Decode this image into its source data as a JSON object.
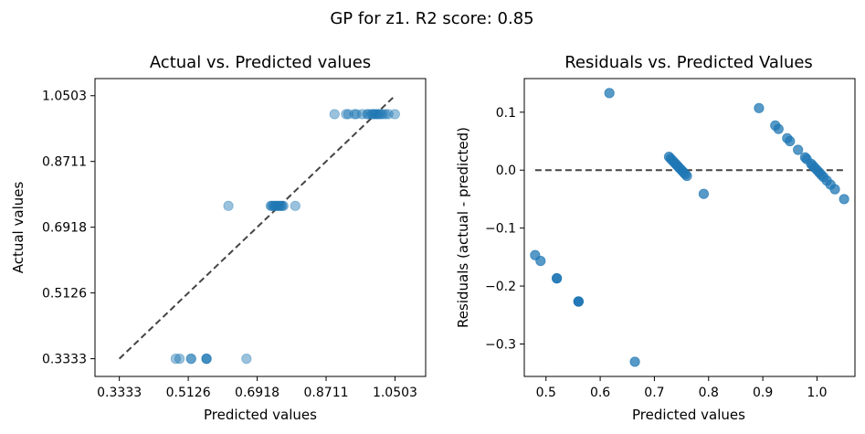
{
  "figure": {
    "suptitle": "GP for z1. R2 score: 0.85"
  },
  "chart_data": [
    {
      "type": "scatter",
      "title": "Actual vs. Predicted values",
      "xlabel": "Predicted values",
      "ylabel": "Actual values",
      "xlim": [
        0.27,
        1.13
      ],
      "ylim": [
        0.285,
        1.097
      ],
      "xticks": [
        0.3333,
        0.5126,
        0.6918,
        0.8711,
        1.0503
      ],
      "xtick_labels": [
        "0.3333",
        "0.5126",
        "0.6918",
        "0.8711",
        "1.0503"
      ],
      "yticks": [
        0.3333,
        0.5126,
        0.6918,
        0.8711,
        1.0503
      ],
      "ytick_labels": [
        "0.3333",
        "0.5126",
        "0.6918",
        "0.8711",
        "1.0503"
      ],
      "reference_line": {
        "from": [
          0.3333,
          0.3333
        ],
        "to": [
          1.0503,
          1.0503
        ],
        "style": "dashed",
        "color": "#444444"
      },
      "marker_color": "#1f77b4",
      "marker_alpha": 0.45,
      "points": [
        [
          0.48,
          0.3333
        ],
        [
          0.49,
          0.3333
        ],
        [
          0.52,
          0.3333
        ],
        [
          0.52,
          0.3333
        ],
        [
          0.56,
          0.3333
        ],
        [
          0.56,
          0.3333
        ],
        [
          0.56,
          0.3333
        ],
        [
          0.664,
          0.3333
        ],
        [
          0.617,
          0.75
        ],
        [
          0.727,
          0.75
        ],
        [
          0.73,
          0.75
        ],
        [
          0.733,
          0.75
        ],
        [
          0.736,
          0.75
        ],
        [
          0.739,
          0.75
        ],
        [
          0.742,
          0.75
        ],
        [
          0.745,
          0.75
        ],
        [
          0.748,
          0.75
        ],
        [
          0.751,
          0.75
        ],
        [
          0.754,
          0.75
        ],
        [
          0.757,
          0.75
        ],
        [
          0.76,
          0.75
        ],
        [
          0.791,
          0.75
        ],
        [
          0.893,
          1.0
        ],
        [
          0.923,
          1.0
        ],
        [
          0.929,
          1.0
        ],
        [
          0.945,
          1.0
        ],
        [
          0.95,
          1.0
        ],
        [
          0.965,
          1.0
        ],
        [
          0.978,
          1.0
        ],
        [
          0.981,
          1.0
        ],
        [
          0.989,
          1.0
        ],
        [
          0.992,
          1.0
        ],
        [
          0.996,
          1.0
        ],
        [
          1.0,
          1.0
        ],
        [
          1.004,
          1.0
        ],
        [
          1.008,
          1.0
        ],
        [
          1.012,
          1.0
        ],
        [
          1.018,
          1.0
        ],
        [
          1.025,
          1.0
        ],
        [
          1.033,
          1.0
        ],
        [
          1.05,
          1.0
        ]
      ]
    },
    {
      "type": "scatter",
      "title": "Residuals vs. Predicted Values",
      "xlabel": "Predicted values",
      "ylabel": "Residuals (actual - predicted)",
      "xlim": [
        0.46,
        1.07
      ],
      "ylim": [
        -0.356,
        0.158
      ],
      "xticks": [
        0.5,
        0.6,
        0.7,
        0.8,
        0.9,
        1.0
      ],
      "xtick_labels": [
        "0.5",
        "0.6",
        "0.7",
        "0.8",
        "0.9",
        "1.0"
      ],
      "yticks": [
        0.1,
        0.0,
        -0.1,
        -0.2,
        -0.3
      ],
      "ytick_labels": [
        "0.1",
        "0.0",
        "−0.1",
        "−0.2",
        "−0.3"
      ],
      "reference_line": {
        "from": [
          0.48,
          0.0
        ],
        "to": [
          1.05,
          0.0
        ],
        "style": "dashed",
        "color": "#444444"
      },
      "marker_color": "#1f77b4",
      "marker_alpha": 0.75,
      "points": [
        [
          0.48,
          -0.1467
        ],
        [
          0.49,
          -0.1567
        ],
        [
          0.52,
          -0.1867
        ],
        [
          0.52,
          -0.1867
        ],
        [
          0.56,
          -0.2267
        ],
        [
          0.56,
          -0.2267
        ],
        [
          0.56,
          -0.2267
        ],
        [
          0.664,
          -0.3307
        ],
        [
          0.617,
          0.133
        ],
        [
          0.727,
          0.023
        ],
        [
          0.73,
          0.02
        ],
        [
          0.733,
          0.017
        ],
        [
          0.736,
          0.014
        ],
        [
          0.739,
          0.011
        ],
        [
          0.742,
          0.008
        ],
        [
          0.745,
          0.005
        ],
        [
          0.748,
          0.002
        ],
        [
          0.751,
          -0.001
        ],
        [
          0.754,
          -0.004
        ],
        [
          0.757,
          -0.007
        ],
        [
          0.76,
          -0.01
        ],
        [
          0.791,
          -0.041
        ],
        [
          0.893,
          0.107
        ],
        [
          0.923,
          0.077
        ],
        [
          0.929,
          0.071
        ],
        [
          0.945,
          0.055
        ],
        [
          0.95,
          0.05
        ],
        [
          0.965,
          0.035
        ],
        [
          0.978,
          0.022
        ],
        [
          0.981,
          0.019
        ],
        [
          0.989,
          0.011
        ],
        [
          0.992,
          0.008
        ],
        [
          0.996,
          0.004
        ],
        [
          1.0,
          0.0
        ],
        [
          1.004,
          -0.004
        ],
        [
          1.008,
          -0.008
        ],
        [
          1.012,
          -0.012
        ],
        [
          1.018,
          -0.018
        ],
        [
          1.025,
          -0.025
        ],
        [
          1.033,
          -0.033
        ],
        [
          1.05,
          -0.05
        ]
      ]
    }
  ]
}
